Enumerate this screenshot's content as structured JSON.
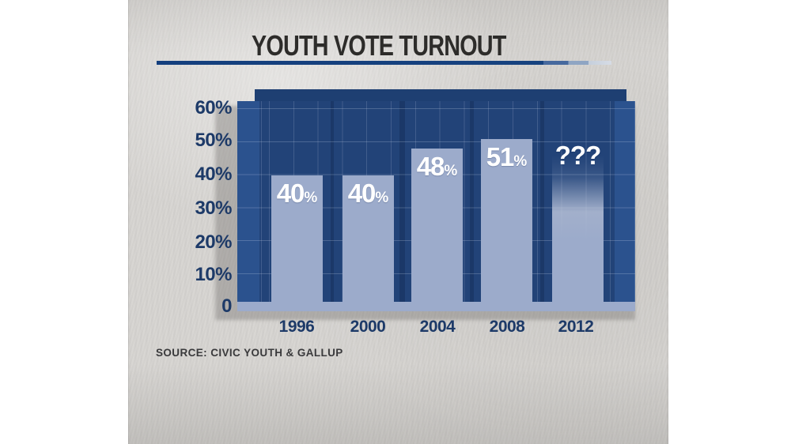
{
  "page": {
    "title": "YOUTH VOTE TURNOUT",
    "source": "SOURCE: CIVIC YOUTH & GALLUP"
  },
  "chart_data": {
    "type": "bar",
    "title": "YOUTH VOTE TURNOUT",
    "categories": [
      "1996",
      "2000",
      "2004",
      "2008",
      "2012"
    ],
    "values": [
      40,
      40,
      48,
      51,
      null
    ],
    "bar_labels": [
      "40",
      "40",
      "48",
      "51",
      "???"
    ],
    "percent_suffix": "%",
    "unknown_display_value": 46,
    "unknown_note": "2012 bar is a faded/gradient bar labeled ??? (value unknown)",
    "xlabel": "",
    "ylabel": "",
    "ylim": [
      0,
      60
    ],
    "yticks": [
      "60%",
      "50%",
      "40%",
      "30%",
      "20%",
      "10%",
      "0"
    ],
    "grid": true,
    "legend": "none",
    "source": "SOURCE: CIVIC YOUTH & GALLUP",
    "colors": {
      "bar": "#9CABCB",
      "plot_background": "#2B528E",
      "back_panel": "#1E3F72",
      "axis_text": "#1D3A68",
      "bar_label_text": "#FFFFFF",
      "title_text": "#2D2C2A",
      "title_rule": "#16427F",
      "paper_background": "#D7D5D2"
    }
  }
}
